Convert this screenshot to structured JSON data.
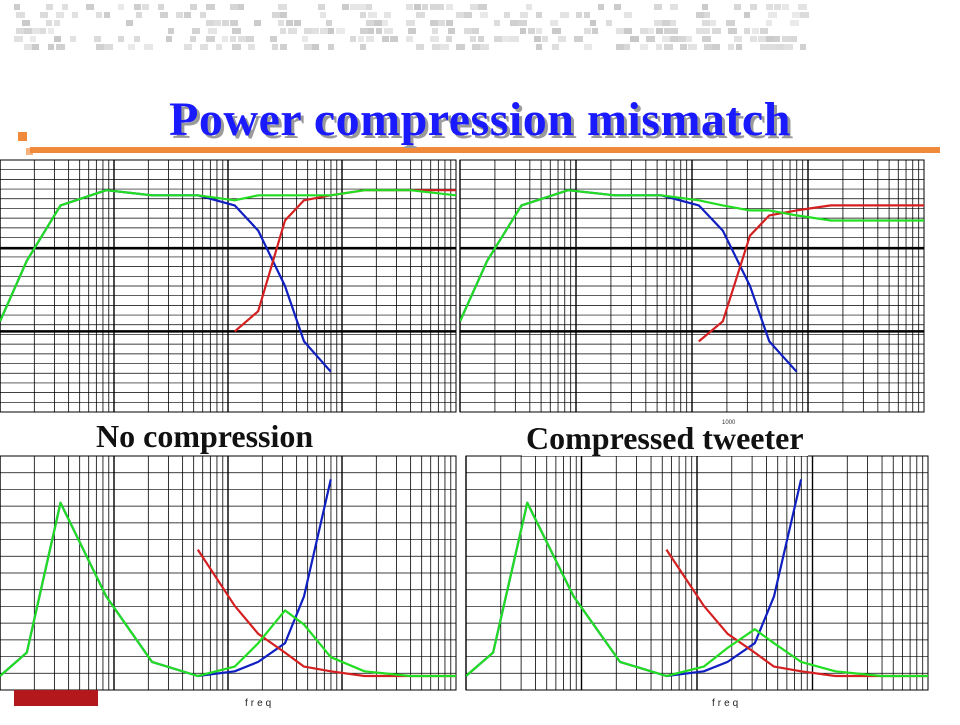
{
  "title": "Power compression mismatch",
  "labels": {
    "left": "No compression",
    "right": "Compressed  tweeter"
  },
  "axis_text": {
    "freq_left": "freq",
    "freq_right": "freq",
    "tick_1000": "1000"
  },
  "colors": {
    "title": "#1a1aff",
    "accent": "#f08a3a",
    "footer_bar": "#b3191c",
    "series_blue": "#1020c0",
    "series_red": "#d42020",
    "series_green": "#22dd22"
  },
  "chart_data": [
    {
      "type": "line",
      "panel": "top-left",
      "xscale": "log",
      "grid": true,
      "x": [
        20,
        30,
        50,
        100,
        200,
        400,
        700,
        1000,
        1500,
        2000,
        3000,
        5000,
        10000,
        20000
      ],
      "series": [
        {
          "values": [
            -32,
            -20,
            -9,
            -6,
            -7,
            -7,
            -9,
            -14,
            -25,
            -36,
            -42,
            null,
            null,
            null
          ]
        },
        {
          "values": [
            null,
            null,
            null,
            null,
            null,
            null,
            -34,
            -30,
            -12,
            -8,
            -7,
            -6,
            -6,
            -6
          ]
        },
        {
          "values": [
            -32,
            -20,
            -9,
            -6,
            -7,
            -7,
            -8,
            -7,
            -7,
            -7,
            -7,
            -6,
            -6,
            -7
          ]
        }
      ]
    },
    {
      "type": "line",
      "panel": "top-right",
      "xscale": "log",
      "grid": true,
      "x": [
        20,
        30,
        50,
        100,
        200,
        400,
        700,
        1000,
        1500,
        2000,
        3000,
        5000,
        10000,
        20000
      ],
      "series": [
        {
          "values": [
            -32,
            -20,
            -9,
            -6,
            -7,
            -7,
            -9,
            -14,
            -25,
            -36,
            -42,
            null,
            null,
            null
          ]
        },
        {
          "values": [
            null,
            null,
            null,
            null,
            null,
            null,
            -36,
            -32,
            -15,
            -11,
            -10,
            -9,
            -9,
            -9
          ]
        },
        {
          "values": [
            -32,
            -20,
            -9,
            -6,
            -7,
            -7,
            -8,
            -9,
            -10,
            -10,
            -11,
            -12,
            -12,
            -12
          ]
        }
      ]
    },
    {
      "type": "line",
      "panel": "bottom-left",
      "xscale": "log",
      "grid": true,
      "x": [
        20,
        30,
        50,
        100,
        200,
        400,
        700,
        1000,
        1500,
        2000,
        3000,
        5000,
        10000,
        20000
      ],
      "series": [
        {
          "values": [
            3,
            8,
            40,
            20,
            6,
            3,
            4,
            6,
            10,
            20,
            45,
            null,
            null,
            null
          ]
        },
        {
          "values": [
            null,
            null,
            null,
            null,
            null,
            30,
            18,
            12,
            8,
            5,
            4,
            3,
            3,
            3
          ]
        },
        {
          "values": [
            3,
            8,
            40,
            20,
            6,
            3,
            5,
            10,
            17,
            14,
            7,
            4,
            3,
            3
          ]
        }
      ]
    },
    {
      "type": "line",
      "panel": "bottom-right",
      "xscale": "log",
      "grid": true,
      "x": [
        20,
        30,
        50,
        100,
        200,
        400,
        700,
        1000,
        1500,
        2000,
        3000,
        5000,
        10000,
        20000
      ],
      "series": [
        {
          "values": [
            3,
            8,
            40,
            20,
            6,
            3,
            4,
            6,
            10,
            20,
            45,
            null,
            null,
            null
          ]
        },
        {
          "values": [
            null,
            null,
            null,
            null,
            null,
            30,
            18,
            12,
            8,
            5,
            4,
            3,
            3,
            3
          ]
        },
        {
          "values": [
            3,
            8,
            40,
            20,
            6,
            3,
            5,
            9,
            13,
            10,
            6,
            4,
            3,
            3
          ]
        }
      ]
    }
  ]
}
